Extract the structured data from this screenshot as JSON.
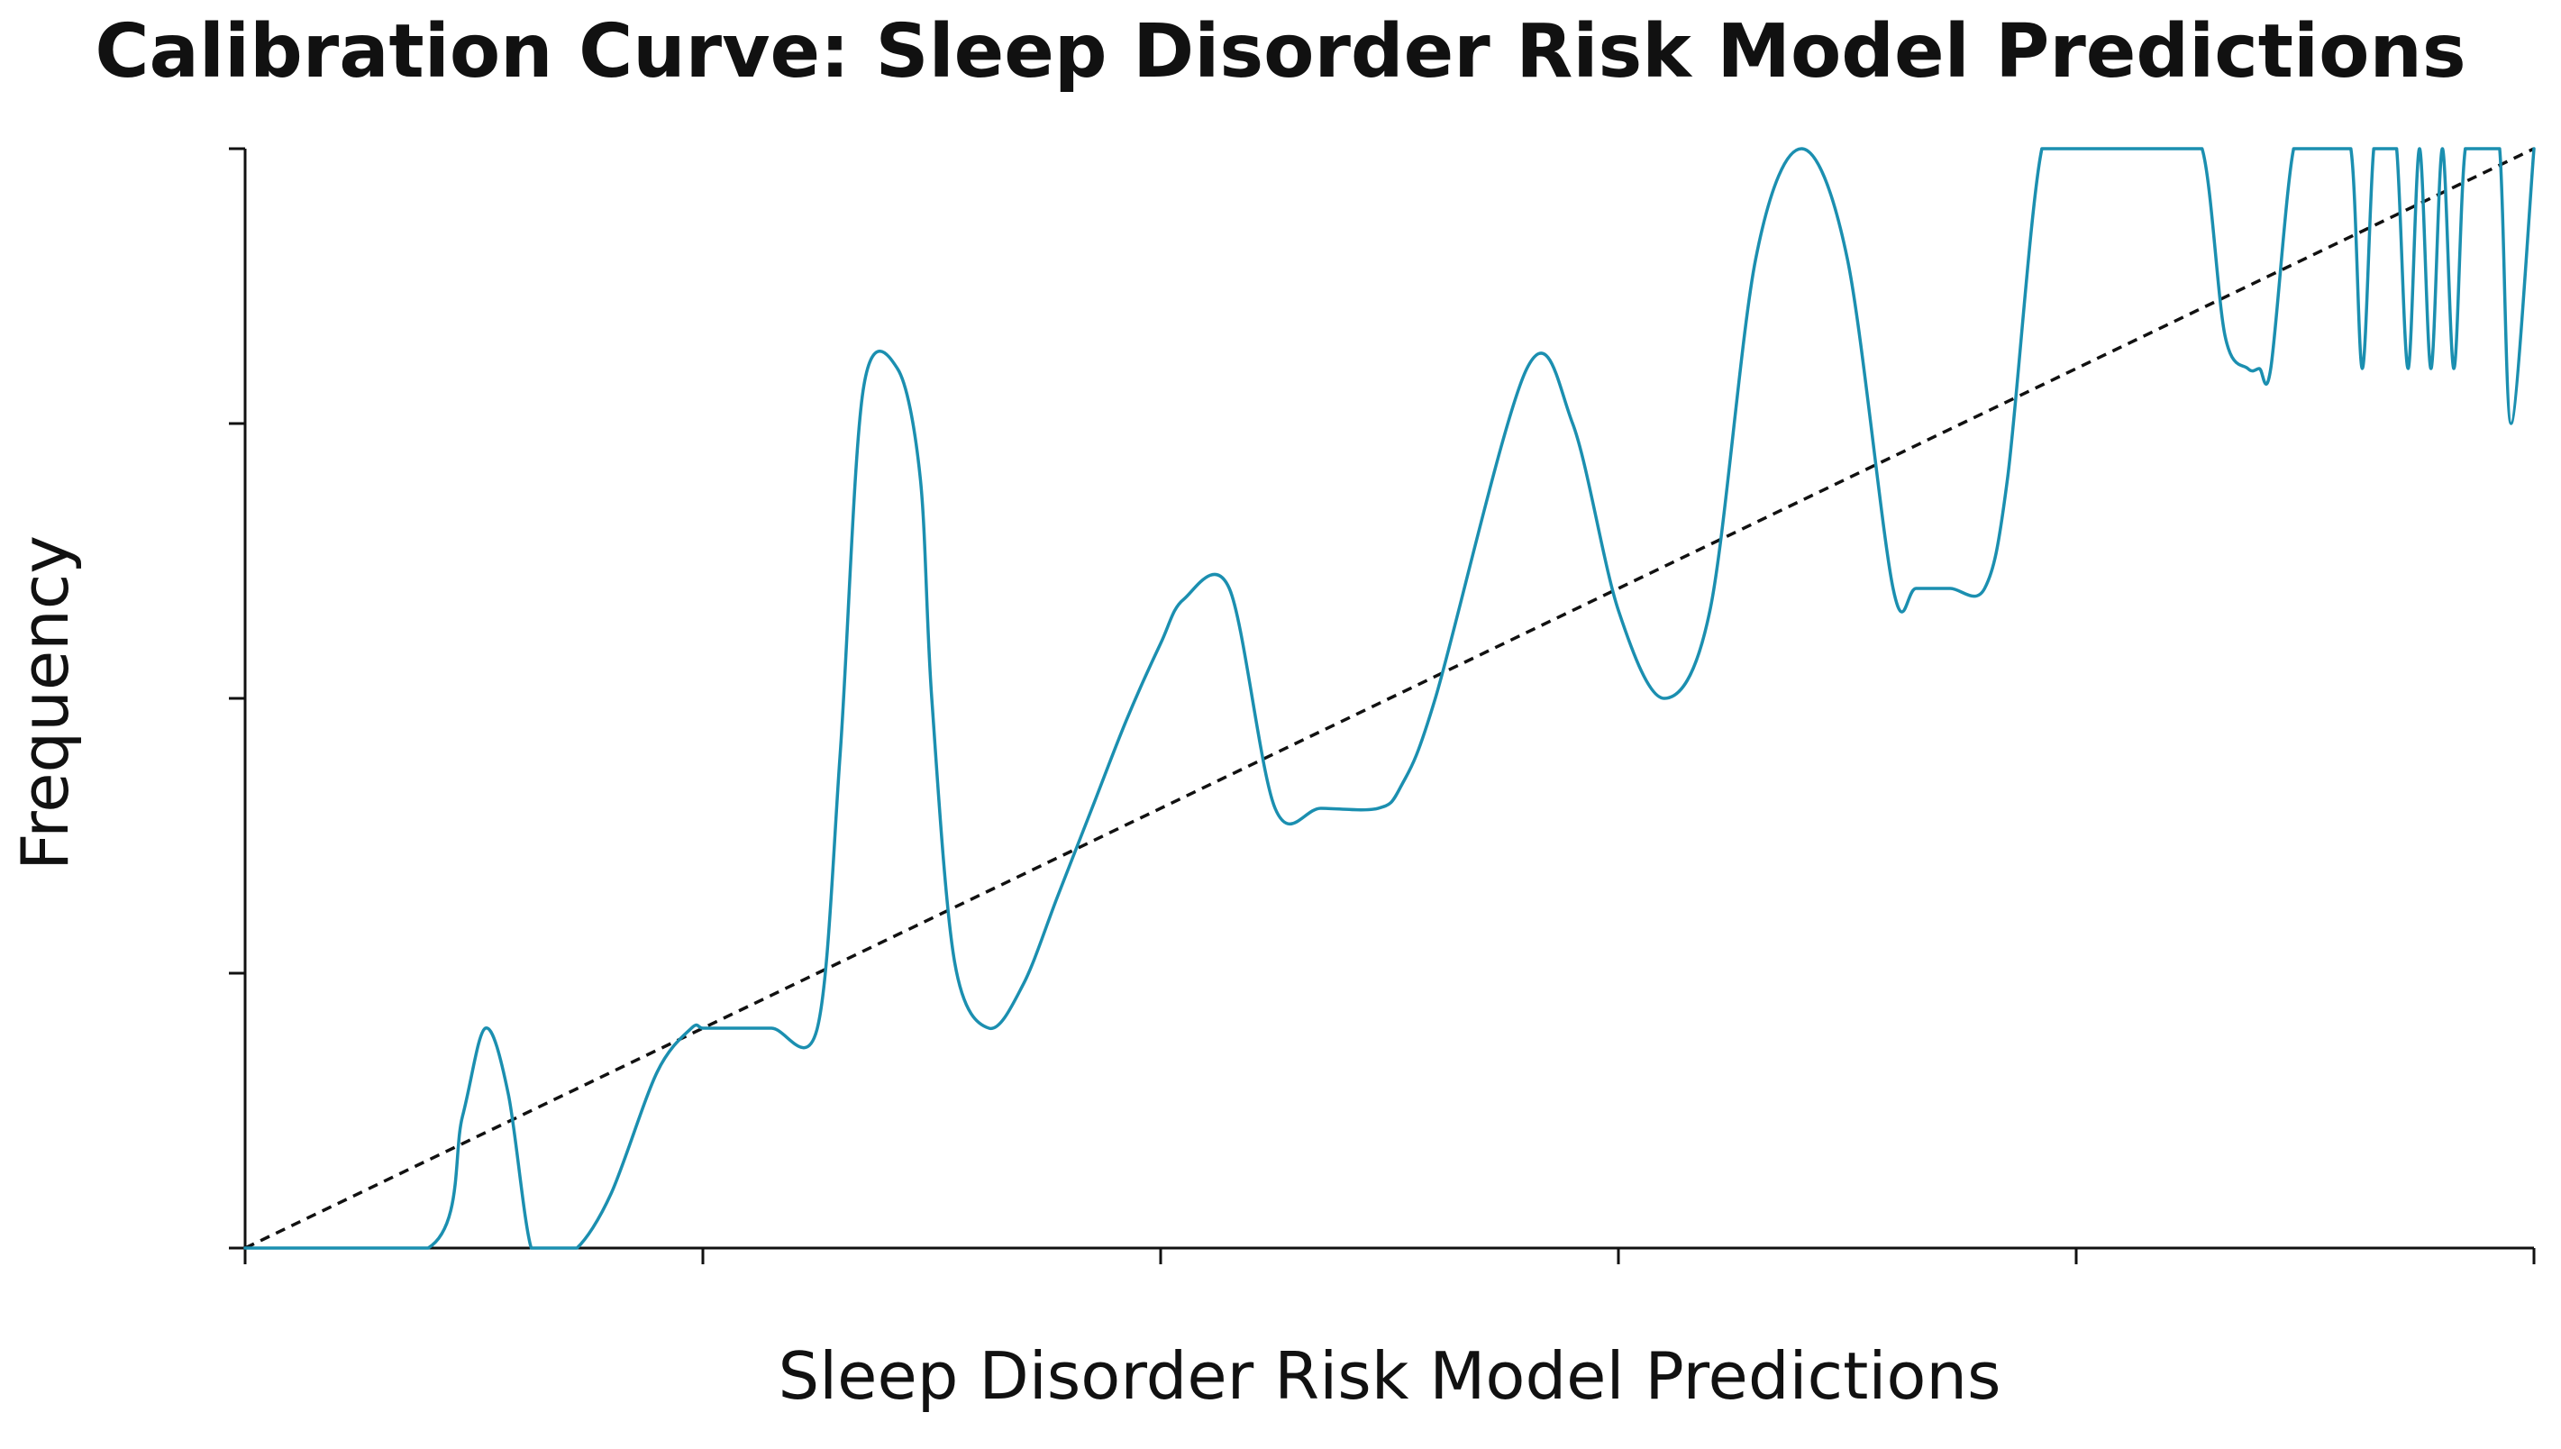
{
  "chart_data": {
    "type": "line",
    "title": "Calibration Curve: Sleep Disorder Risk Model Predictions",
    "xlabel": "Sleep Disorder Risk Model Predictions",
    "ylabel": "Frequency",
    "xlim": [
      0,
      1
    ],
    "ylim": [
      0,
      1
    ],
    "x_ticks": [
      0,
      0.2,
      0.4,
      0.6,
      0.8,
      1.0
    ],
    "y_ticks": [
      0,
      0.25,
      0.5,
      0.75,
      1.0
    ],
    "grid": false,
    "colors": {
      "series": "#1b8fb0",
      "reference": "#111111",
      "axis": "#111111"
    },
    "series": [
      {
        "style": "solid",
        "x": [
          0,
          0.08,
          0.095,
          0.105,
          0.115,
          0.125,
          0.135,
          0.145,
          0.16,
          0.18,
          0.195,
          0.2,
          0.21,
          0.23,
          0.25,
          0.26,
          0.27,
          0.285,
          0.295,
          0.3,
          0.31,
          0.325,
          0.34,
          0.355,
          0.37,
          0.385,
          0.4,
          0.41,
          0.43,
          0.45,
          0.47,
          0.495,
          0.505,
          0.52,
          0.56,
          0.58,
          0.6,
          0.62,
          0.64,
          0.66,
          0.68,
          0.7,
          0.72,
          0.73,
          0.745,
          0.76,
          0.77,
          0.785,
          0.8,
          0.82,
          0.84,
          0.855,
          0.865,
          0.875,
          0.88,
          0.885,
          0.895,
          0.905,
          0.91,
          0.92,
          0.925,
          0.93,
          0.935,
          0.94,
          0.945,
          0.95,
          0.955,
          0.96,
          0.965,
          0.97,
          0.978,
          0.985,
          0.99,
          1.0
        ],
        "y": [
          0,
          0,
          0.12,
          0.2,
          0.14,
          0,
          0,
          0,
          0.05,
          0.16,
          0.2,
          0.2,
          0.2,
          0.2,
          0.2,
          0.45,
          0.78,
          0.8,
          0.7,
          0.5,
          0.26,
          0.2,
          0.24,
          0.32,
          0.4,
          0.48,
          0.55,
          0.59,
          0.6,
          0.4,
          0.4,
          0.4,
          0.42,
          0.5,
          0.8,
          0.75,
          0.58,
          0.5,
          0.58,
          0.9,
          1.0,
          0.9,
          0.6,
          0.6,
          0.6,
          0.6,
          0.7,
          1.0,
          1.0,
          1.0,
          1.0,
          1.0,
          0.83,
          0.8,
          0.8,
          0.8,
          1.0,
          1.0,
          1.0,
          1.0,
          0.8,
          1.0,
          1.0,
          1.0,
          0.8,
          1.0,
          0.8,
          1.0,
          0.8,
          1.0,
          1.0,
          1.0,
          0.75,
          1.0
        ]
      },
      {
        "style": "dashed",
        "x": [
          0,
          1
        ],
        "y": [
          0,
          1
        ]
      }
    ]
  }
}
